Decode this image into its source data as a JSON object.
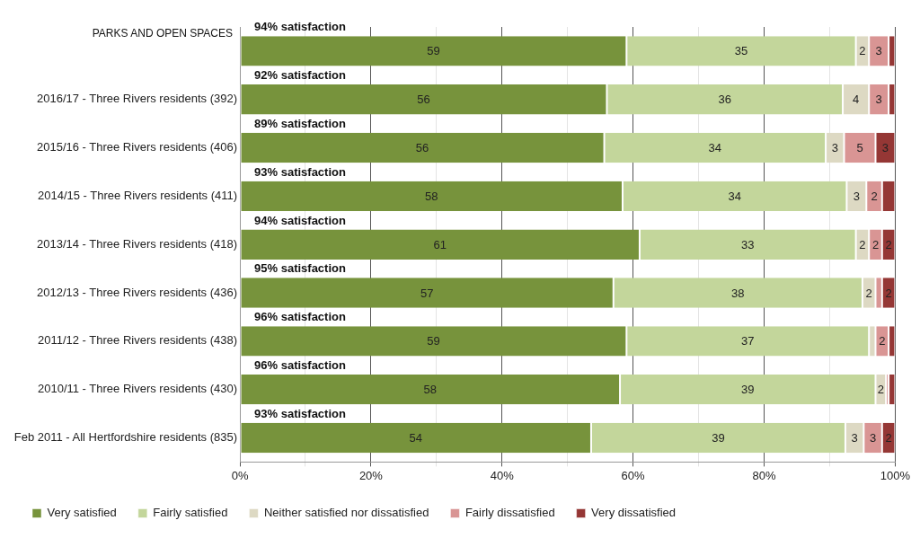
{
  "chart_data": {
    "type": "bar",
    "orientation": "horizontal",
    "stacked": true,
    "title": "PARKS AND OPEN SPACES",
    "categories": [
      null,
      "2016/17 - Three Rivers residents (392)",
      "2015/16 - Three Rivers residents (406)",
      "2014/15 - Three Rivers residents (411)",
      "2013/14 - Three Rivers residents (418)",
      "2012/13 - Three Rivers residents (436)",
      "2011/12 - Three Rivers residents (438)",
      "2010/11 - Three Rivers residents (430)",
      "Feb 2011 - All Hertfordshire residents (835)"
    ],
    "series": [
      {
        "name": "Very satisfied",
        "color": "#77933c",
        "values": [
          59,
          56,
          55.6,
          58.4,
          61,
          57,
          59,
          58,
          53.6
        ],
        "value_labels": [
          "59",
          "56",
          "56",
          "58",
          "61",
          "57",
          "59",
          "58",
          "54"
        ]
      },
      {
        "name": "Fairly satisfied",
        "color": "#c3d69b",
        "values": [
          35,
          36,
          33.8,
          34.2,
          33,
          38,
          37,
          39,
          38.8
        ],
        "value_labels": [
          "35",
          "36",
          "34",
          "34",
          "33",
          "38",
          "37",
          "39",
          "39"
        ]
      },
      {
        "name": "Neither satisfied nor dissatisfied",
        "color": "#ddd9c3",
        "values": [
          2,
          4,
          2.8,
          3,
          2,
          2,
          1,
          1.6,
          2.8
        ],
        "value_labels": [
          "2",
          "4",
          "3",
          "3",
          "2",
          "2",
          null,
          "2",
          "3"
        ]
      },
      {
        "name": "Fairly dissatisfied",
        "color": "#d99594",
        "values": [
          3,
          3,
          4.8,
          2.4,
          2,
          1,
          2,
          0.4,
          2.8
        ],
        "value_labels": [
          "3",
          "3",
          "5",
          "2",
          "2",
          null,
          "2",
          null,
          "3"
        ]
      },
      {
        "name": "Very dissatisfied",
        "color": "#953735",
        "values": [
          1,
          1,
          3,
          2,
          2,
          2,
          1,
          1,
          2
        ],
        "value_labels": [
          null,
          null,
          "3",
          null,
          "2",
          "2",
          null,
          null,
          "2"
        ]
      }
    ],
    "xlim": [
      0,
      100
    ],
    "xticks": [
      {
        "value": 0,
        "label": "0%"
      },
      {
        "value": 10,
        "label": null
      },
      {
        "value": 20,
        "label": "20%"
      },
      {
        "value": 30,
        "label": null
      },
      {
        "value": 40,
        "label": "40%"
      },
      {
        "value": 50,
        "label": null
      },
      {
        "value": 60,
        "label": "60%"
      },
      {
        "value": 70,
        "label": null
      },
      {
        "value": 80,
        "label": "80%"
      },
      {
        "value": 90,
        "label": null
      },
      {
        "value": 100,
        "label": "100%"
      }
    ],
    "grid": "x",
    "legend": "bottom",
    "annotations": [
      "94% satisfaction",
      "92% satisfaction",
      "89% satisfaction",
      "93% satisfaction",
      "94% satisfaction",
      "95% satisfaction",
      "96% satisfaction",
      "96% satisfaction",
      "93% satisfaction"
    ]
  }
}
